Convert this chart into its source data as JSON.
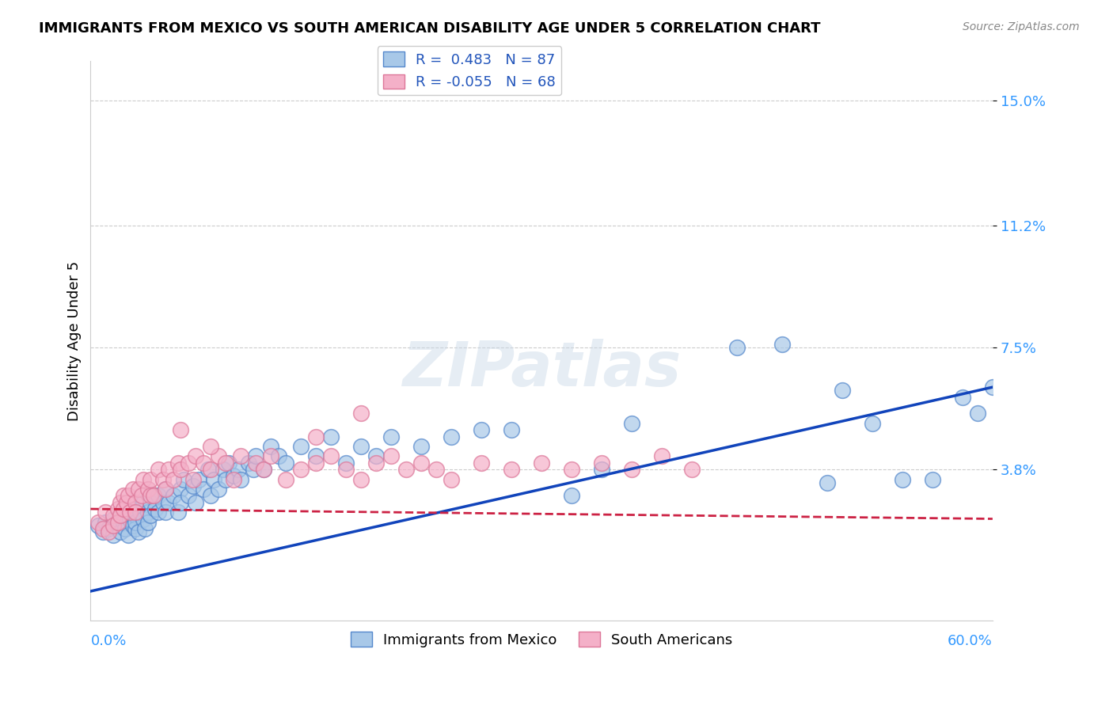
{
  "title": "IMMIGRANTS FROM MEXICO VS SOUTH AMERICAN DISABILITY AGE UNDER 5 CORRELATION CHART",
  "source": "Source: ZipAtlas.com",
  "ylabel": "Disability Age Under 5",
  "ytick_labels": [
    "3.8%",
    "7.5%",
    "11.2%",
    "15.0%"
  ],
  "ytick_values": [
    0.038,
    0.075,
    0.112,
    0.15
  ],
  "xmin": 0.0,
  "xmax": 0.6,
  "ymin": -0.008,
  "ymax": 0.162,
  "legend_label1": "R =  0.483   N = 87",
  "legend_label2": "R = -0.055   N = 68",
  "bottom_label1": "Immigrants from Mexico",
  "bottom_label2": "South Americans",
  "color_mexico": "#a8c8e8",
  "color_south": "#f4b0c8",
  "edge_mexico": "#5588cc",
  "edge_south": "#dd7799",
  "trendline_mexico_color": "#1144bb",
  "trendline_south_color": "#cc2244",
  "watermark": "ZIPatlas",
  "mexico_trend_x0": 0.0,
  "mexico_trend_y0": 0.001,
  "mexico_trend_x1": 0.6,
  "mexico_trend_y1": 0.063,
  "south_trend_x0": 0.0,
  "south_trend_y0": 0.026,
  "south_trend_x1": 0.6,
  "south_trend_y1": 0.023,
  "mexico_x": [
    0.005,
    0.008,
    0.01,
    0.012,
    0.015,
    0.015,
    0.018,
    0.02,
    0.02,
    0.022,
    0.023,
    0.025,
    0.025,
    0.026,
    0.028,
    0.028,
    0.03,
    0.03,
    0.03,
    0.032,
    0.033,
    0.035,
    0.035,
    0.036,
    0.038,
    0.038,
    0.04,
    0.04,
    0.042,
    0.043,
    0.045,
    0.045,
    0.048,
    0.05,
    0.05,
    0.052,
    0.055,
    0.058,
    0.06,
    0.06,
    0.062,
    0.065,
    0.068,
    0.07,
    0.072,
    0.075,
    0.078,
    0.08,
    0.082,
    0.085,
    0.088,
    0.09,
    0.092,
    0.095,
    0.098,
    0.1,
    0.105,
    0.108,
    0.11,
    0.115,
    0.12,
    0.125,
    0.13,
    0.14,
    0.15,
    0.16,
    0.17,
    0.18,
    0.19,
    0.2,
    0.22,
    0.24,
    0.26,
    0.28,
    0.32,
    0.34,
    0.36,
    0.43,
    0.46,
    0.49,
    0.5,
    0.52,
    0.54,
    0.56,
    0.58,
    0.59,
    0.6
  ],
  "mexico_y": [
    0.021,
    0.019,
    0.022,
    0.02,
    0.018,
    0.023,
    0.021,
    0.024,
    0.019,
    0.022,
    0.02,
    0.025,
    0.018,
    0.023,
    0.026,
    0.021,
    0.024,
    0.02,
    0.022,
    0.019,
    0.025,
    0.023,
    0.028,
    0.02,
    0.025,
    0.022,
    0.028,
    0.024,
    0.03,
    0.026,
    0.025,
    0.03,
    0.028,
    0.025,
    0.032,
    0.028,
    0.03,
    0.025,
    0.032,
    0.028,
    0.035,
    0.03,
    0.033,
    0.028,
    0.035,
    0.032,
    0.038,
    0.03,
    0.035,
    0.032,
    0.038,
    0.035,
    0.04,
    0.036,
    0.038,
    0.035,
    0.04,
    0.038,
    0.042,
    0.038,
    0.045,
    0.042,
    0.04,
    0.045,
    0.042,
    0.048,
    0.04,
    0.045,
    0.042,
    0.048,
    0.045,
    0.048,
    0.05,
    0.05,
    0.03,
    0.038,
    0.052,
    0.075,
    0.076,
    0.034,
    0.062,
    0.052,
    0.035,
    0.035,
    0.06,
    0.055,
    0.063
  ],
  "south_x": [
    0.005,
    0.008,
    0.01,
    0.012,
    0.015,
    0.015,
    0.018,
    0.018,
    0.02,
    0.02,
    0.022,
    0.022,
    0.024,
    0.025,
    0.026,
    0.028,
    0.03,
    0.03,
    0.032,
    0.034,
    0.035,
    0.038,
    0.04,
    0.04,
    0.042,
    0.045,
    0.048,
    0.05,
    0.052,
    0.055,
    0.058,
    0.06,
    0.065,
    0.068,
    0.07,
    0.075,
    0.08,
    0.085,
    0.09,
    0.095,
    0.1,
    0.11,
    0.115,
    0.12,
    0.13,
    0.14,
    0.15,
    0.16,
    0.17,
    0.18,
    0.19,
    0.2,
    0.21,
    0.22,
    0.23,
    0.24,
    0.26,
    0.28,
    0.3,
    0.32,
    0.34,
    0.36,
    0.38,
    0.4,
    0.15,
    0.18,
    0.06,
    0.08
  ],
  "south_y": [
    0.022,
    0.02,
    0.025,
    0.019,
    0.024,
    0.021,
    0.026,
    0.022,
    0.028,
    0.024,
    0.03,
    0.026,
    0.028,
    0.03,
    0.025,
    0.032,
    0.028,
    0.025,
    0.032,
    0.03,
    0.035,
    0.032,
    0.03,
    0.035,
    0.03,
    0.038,
    0.035,
    0.032,
    0.038,
    0.035,
    0.04,
    0.038,
    0.04,
    0.035,
    0.042,
    0.04,
    0.038,
    0.042,
    0.04,
    0.035,
    0.042,
    0.04,
    0.038,
    0.042,
    0.035,
    0.038,
    0.04,
    0.042,
    0.038,
    0.035,
    0.04,
    0.042,
    0.038,
    0.04,
    0.038,
    0.035,
    0.04,
    0.038,
    0.04,
    0.038,
    0.04,
    0.038,
    0.042,
    0.038,
    0.048,
    0.055,
    0.05,
    0.045
  ]
}
